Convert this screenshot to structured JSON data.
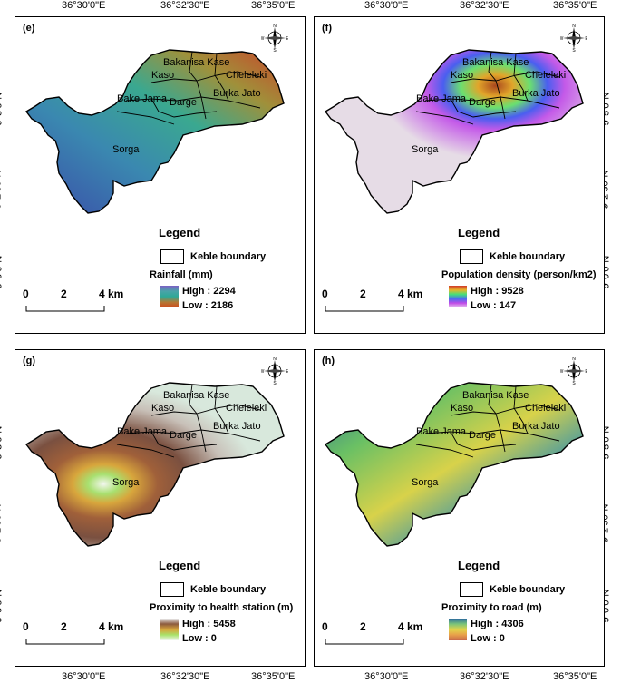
{
  "coords": {
    "lon": [
      "36°30'0\"E",
      "36°32'30\"E",
      "36°35'0\"E"
    ],
    "lat": [
      "9°5'0\"N",
      "9°2'30\"N",
      "9°0'0\"N"
    ]
  },
  "panels": [
    {
      "label": "(e)",
      "legend_title": "Legend",
      "boundary_label": "Keble boundary",
      "layer_title": "Rainfall (mm)",
      "high": "High : 2294",
      "low": "Low : 2186",
      "ramp": [
        "#7b62c4",
        "#4aa3a8",
        "#2ea896",
        "#b07a36",
        "#d04a1c"
      ]
    },
    {
      "label": "(f)",
      "legend_title": "Legend",
      "boundary_label": "Keble boundary",
      "layer_title": "Population density  (person/km2)",
      "high": "High : 9528",
      "low": "Low : 147",
      "ramp": [
        "#d23a2a",
        "#e6b62a",
        "#44e07a",
        "#4a6cf0",
        "#c04ae6",
        "#e8c6ee"
      ]
    },
    {
      "label": "(g)",
      "legend_title": "Legend",
      "boundary_label": "Keble boundary",
      "layer_title": "Proximity to health station (m)",
      "high": "High : 5458",
      "low": "Low : 0",
      "ramp": [
        "#e6e6e6",
        "#8c5a3e",
        "#d8a43a",
        "#a8e26a",
        "#f0f6ee"
      ]
    },
    {
      "label": "(h)",
      "legend_title": "Legend",
      "boundary_label": "Keble boundary",
      "layer_title": "Proximity to road (m)",
      "high": "High : 4306",
      "low": "Low : 0",
      "ramp": [
        "#2f6f9c",
        "#7ac47a",
        "#e0d44a",
        "#e8a04a",
        "#c86a4a"
      ]
    }
  ],
  "kebeles": [
    "Bakanisa Kase",
    "Kaso",
    "Cheleleki",
    "Bake Jama",
    "Darge",
    "Burka Jato",
    "Sorga"
  ],
  "scalebar": {
    "n0": "0",
    "n2": "2",
    "n4": "4 km"
  },
  "north": {
    "n": "N",
    "s": "S",
    "e": "E",
    "w": "W"
  }
}
